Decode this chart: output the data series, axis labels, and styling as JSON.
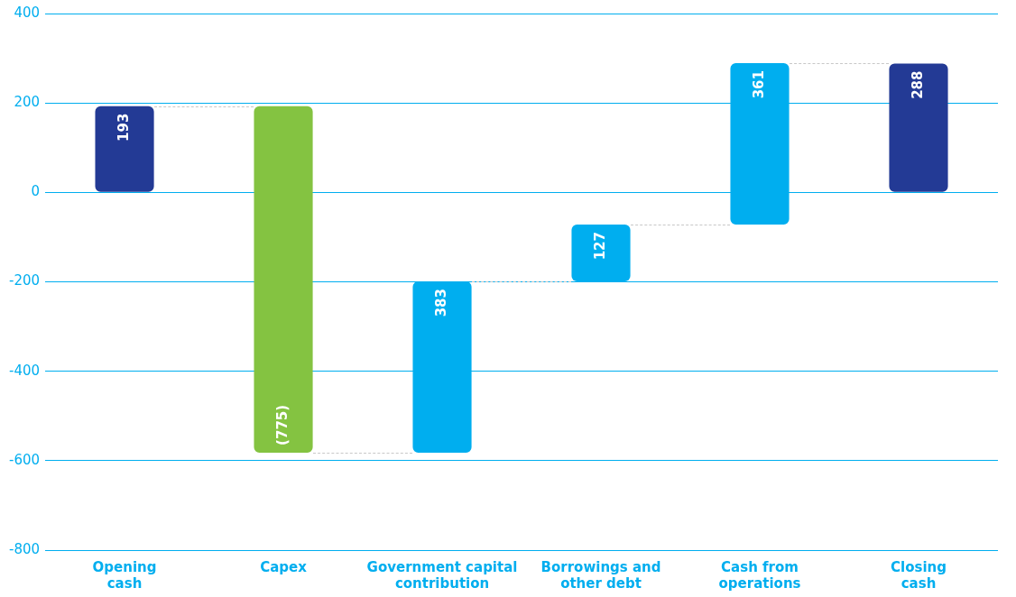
{
  "chart_data": {
    "type": "bar",
    "categories": [
      "Opening cash",
      "Capex",
      "Government capital contribution",
      "Borrowings and other debt",
      "Cash from operations",
      "Closing cash"
    ],
    "values": [
      193,
      -775,
      383,
      127,
      361,
      288
    ],
    "base": [
      0,
      193,
      -582,
      -199,
      -72,
      0
    ],
    "colors": [
      "#233a95",
      "#84c341",
      "#00aeef",
      "#00aeef",
      "#00aeef",
      "#233a95"
    ],
    "value_labels": [
      "193",
      "(775)",
      "383",
      "127",
      "361",
      "288"
    ],
    "ylim": [
      -800,
      400
    ],
    "yticks": [
      -800,
      -600,
      -400,
      -200,
      0,
      200,
      400
    ],
    "grid": "y",
    "legend": false
  }
}
